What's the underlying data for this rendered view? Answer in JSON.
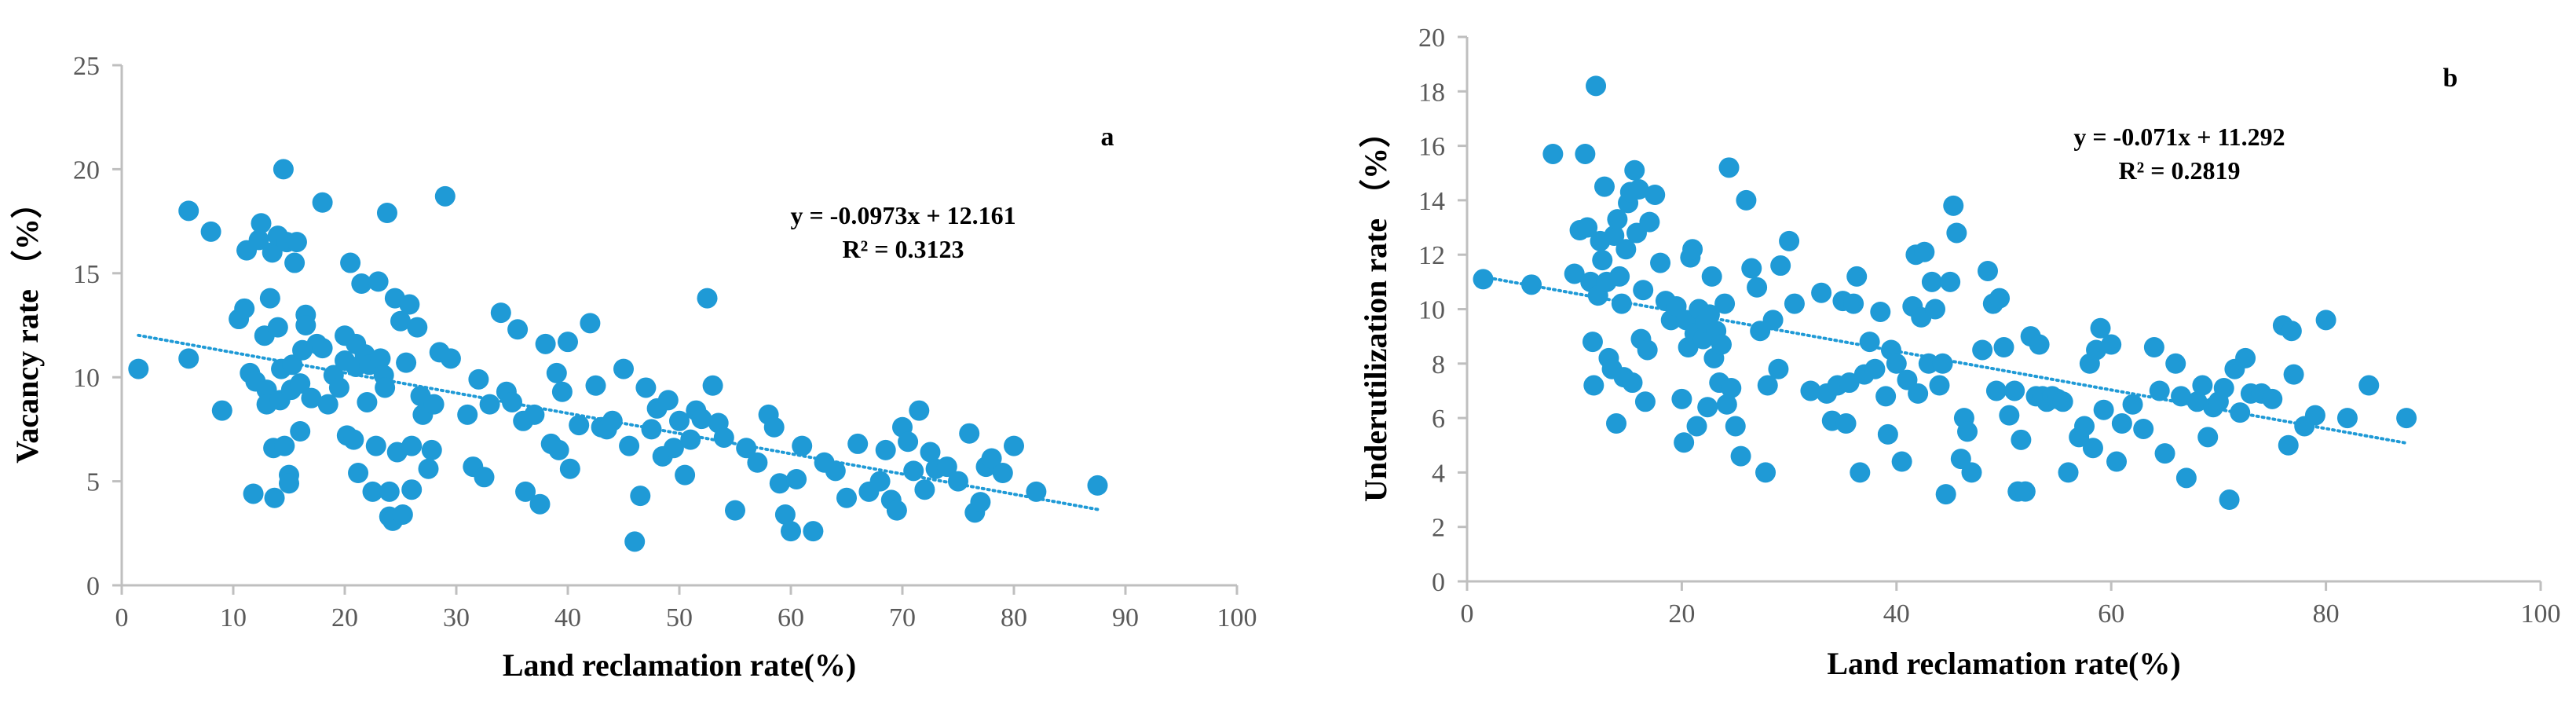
{
  "colors": {
    "point": "#1f9ad6",
    "trend": "#1f9ad6",
    "axis": "#bfbfbf",
    "text": "#000000"
  },
  "chart_data": [
    {
      "type": "scatter",
      "panel": "a",
      "xlabel": "Land reclamation rate(%)",
      "ylabel": "Vacancy rate （%）",
      "xlim": [
        0,
        100
      ],
      "ylim": [
        0,
        25
      ],
      "xticks": [
        0,
        10,
        20,
        30,
        40,
        50,
        60,
        70,
        80,
        90,
        100
      ],
      "yticks": [
        0,
        5,
        10,
        15,
        20,
        25
      ],
      "equation": "y = -0.0973x + 12.161",
      "r2": "R² = 0.3123",
      "trend": {
        "slope": -0.0973,
        "intercept": 12.161,
        "x_range": [
          1.5,
          87.5
        ]
      },
      "points": [
        [
          1.5,
          10.4
        ],
        [
          6,
          18
        ],
        [
          6,
          10.9
        ],
        [
          8,
          17
        ],
        [
          9,
          8.4
        ],
        [
          10.5,
          12.8
        ],
        [
          11,
          13.3
        ],
        [
          11.2,
          16.1
        ],
        [
          11.5,
          10.2
        ],
        [
          11.8,
          4.4
        ],
        [
          12,
          9.8
        ],
        [
          12.3,
          16.6
        ],
        [
          12.5,
          17.4
        ],
        [
          12.8,
          12
        ],
        [
          13,
          9.4
        ],
        [
          13,
          8.7
        ],
        [
          13.3,
          13.8
        ],
        [
          13.5,
          16
        ],
        [
          13.6,
          6.6
        ],
        [
          13.7,
          4.2
        ],
        [
          14,
          16.8
        ],
        [
          14,
          12.4
        ],
        [
          14.2,
          8.9
        ],
        [
          14.3,
          10.4
        ],
        [
          14.5,
          20
        ],
        [
          14.6,
          6.7
        ],
        [
          14.8,
          16.5
        ],
        [
          15,
          5.3
        ],
        [
          15,
          4.9
        ],
        [
          15.2,
          9.4
        ],
        [
          15.3,
          10.6
        ],
        [
          15.5,
          15.5
        ],
        [
          15.7,
          16.5
        ],
        [
          16,
          9.7
        ],
        [
          16,
          7.4
        ],
        [
          16.2,
          11.3
        ],
        [
          16.5,
          13
        ],
        [
          16.5,
          12.5
        ],
        [
          17,
          9
        ],
        [
          17.5,
          11.6
        ],
        [
          18,
          18.4
        ],
        [
          18,
          11.4
        ],
        [
          18.5,
          8.7
        ],
        [
          19,
          10.1
        ],
        [
          19.5,
          9.5
        ],
        [
          20,
          12
        ],
        [
          20,
          10.8
        ],
        [
          20.2,
          7.2
        ],
        [
          20.5,
          15.5
        ],
        [
          20.8,
          7
        ],
        [
          21,
          11.6
        ],
        [
          21,
          10.5
        ],
        [
          21.2,
          5.4
        ],
        [
          21.5,
          14.5
        ],
        [
          21.8,
          11.1
        ],
        [
          22,
          8.8
        ],
        [
          22.2,
          10.6
        ],
        [
          22.5,
          4.5
        ],
        [
          22.8,
          6.7
        ],
        [
          23,
          14.6
        ],
        [
          23.2,
          10.9
        ],
        [
          23.5,
          10.1
        ],
        [
          23.6,
          9.5
        ],
        [
          23.8,
          17.9
        ],
        [
          24,
          4.5
        ],
        [
          24,
          3.3
        ],
        [
          24.3,
          3.1
        ],
        [
          24.5,
          13.8
        ],
        [
          24.7,
          6.4
        ],
        [
          25,
          12.7
        ],
        [
          25.2,
          3.4
        ],
        [
          25.5,
          10.7
        ],
        [
          25.8,
          13.5
        ],
        [
          26,
          6.7
        ],
        [
          26,
          4.6
        ],
        [
          26.5,
          12.4
        ],
        [
          26.8,
          9.1
        ],
        [
          27,
          8.2
        ],
        [
          27.5,
          5.6
        ],
        [
          27.8,
          6.5
        ],
        [
          28,
          8.7
        ],
        [
          28.5,
          11.2
        ],
        [
          29,
          18.7
        ],
        [
          29.5,
          10.9
        ],
        [
          31,
          8.2
        ],
        [
          31.5,
          5.7
        ],
        [
          32,
          9.9
        ],
        [
          32.5,
          5.2
        ],
        [
          33,
          8.7
        ],
        [
          34,
          13.1
        ],
        [
          34.5,
          9.3
        ],
        [
          35,
          8.8
        ],
        [
          35.5,
          12.3
        ],
        [
          36,
          7.9
        ],
        [
          36.2,
          4.5
        ],
        [
          37,
          8.2
        ],
        [
          37.5,
          3.9
        ],
        [
          38,
          11.6
        ],
        [
          38.5,
          6.8
        ],
        [
          39,
          10.2
        ],
        [
          39.2,
          6.5
        ],
        [
          39.5,
          9.3
        ],
        [
          40,
          11.7
        ],
        [
          40.2,
          5.6
        ],
        [
          41,
          7.7
        ],
        [
          42,
          12.6
        ],
        [
          42.5,
          9.6
        ],
        [
          43,
          7.6
        ],
        [
          43.5,
          7.5
        ],
        [
          44,
          7.9
        ],
        [
          45,
          10.4
        ],
        [
          45.5,
          6.7
        ],
        [
          46,
          2.1
        ],
        [
          46.5,
          4.3
        ],
        [
          47,
          9.5
        ],
        [
          47.5,
          7.5
        ],
        [
          48,
          8.5
        ],
        [
          48.5,
          6.2
        ],
        [
          49,
          8.9
        ],
        [
          49.5,
          6.6
        ],
        [
          50,
          7.9
        ],
        [
          50.5,
          5.3
        ],
        [
          51,
          7
        ],
        [
          51.5,
          8.4
        ],
        [
          52,
          8
        ],
        [
          52.5,
          13.8
        ],
        [
          53,
          9.6
        ],
        [
          53.5,
          7.8
        ],
        [
          54,
          7.1
        ],
        [
          55,
          3.6
        ],
        [
          56,
          6.6
        ],
        [
          57,
          5.9
        ],
        [
          58,
          8.2
        ],
        [
          58.5,
          7.6
        ],
        [
          59,
          4.9
        ],
        [
          59.5,
          3.4
        ],
        [
          60,
          2.6
        ],
        [
          60.5,
          5.1
        ],
        [
          61,
          6.7
        ],
        [
          62,
          2.6
        ],
        [
          63,
          5.9
        ],
        [
          64,
          5.5
        ],
        [
          65,
          4.2
        ],
        [
          66,
          6.8
        ],
        [
          67,
          4.5
        ],
        [
          68,
          5
        ],
        [
          68.5,
          6.5
        ],
        [
          69,
          4.1
        ],
        [
          69.5,
          3.6
        ],
        [
          70,
          7.6
        ],
        [
          70.5,
          6.9
        ],
        [
          71,
          5.5
        ],
        [
          71.5,
          8.4
        ],
        [
          72,
          4.6
        ],
        [
          72.5,
          6.4
        ],
        [
          73,
          5.6
        ],
        [
          74,
          5.7
        ],
        [
          75,
          5
        ],
        [
          76,
          7.3
        ],
        [
          76.5,
          3.5
        ],
        [
          77,
          4
        ],
        [
          77.5,
          5.7
        ],
        [
          78,
          6.1
        ],
        [
          79,
          5.4
        ],
        [
          80,
          6.7
        ],
        [
          82,
          4.5
        ],
        [
          87.5,
          4.8
        ]
      ]
    },
    {
      "type": "scatter",
      "panel": "b",
      "xlabel": "Land reclamation rate(%)",
      "ylabel": "Underutilization rate （%）",
      "xlim": [
        0,
        100
      ],
      "ylim": [
        0,
        20
      ],
      "xticks": [
        0,
        20,
        40,
        60,
        80,
        100
      ],
      "yticks": [
        0,
        2,
        4,
        6,
        8,
        10,
        12,
        14,
        16,
        18,
        20
      ],
      "equation": "y = -0.071x + 11.292",
      "r2": "R² = 0.2819",
      "trend": {
        "slope": -0.071,
        "intercept": 11.292,
        "x_range": [
          1.5,
          87.5
        ]
      },
      "points": [
        [
          1.5,
          11.1
        ],
        [
          6,
          10.9
        ],
        [
          8,
          15.7
        ],
        [
          10,
          11.3
        ],
        [
          10.5,
          12.9
        ],
        [
          11,
          15.7
        ],
        [
          11.2,
          13
        ],
        [
          11.5,
          11
        ],
        [
          11.7,
          8.8
        ],
        [
          11.8,
          7.2
        ],
        [
          12,
          18.2
        ],
        [
          12.2,
          10.5
        ],
        [
          12.4,
          12.5
        ],
        [
          12.6,
          11.8
        ],
        [
          12.8,
          14.5
        ],
        [
          13,
          11
        ],
        [
          13.2,
          8.2
        ],
        [
          13.5,
          7.8
        ],
        [
          13.7,
          12.7
        ],
        [
          13.9,
          5.8
        ],
        [
          14,
          13.3
        ],
        [
          14.2,
          11.2
        ],
        [
          14.4,
          10.2
        ],
        [
          14.6,
          7.5
        ],
        [
          14.8,
          12.2
        ],
        [
          15,
          13.9
        ],
        [
          15.2,
          14.3
        ],
        [
          15.4,
          7.3
        ],
        [
          15.6,
          15.1
        ],
        [
          15.8,
          12.8
        ],
        [
          16,
          14.4
        ],
        [
          16.2,
          8.9
        ],
        [
          16.4,
          10.7
        ],
        [
          16.6,
          6.6
        ],
        [
          16.8,
          8.5
        ],
        [
          17,
          13.2
        ],
        [
          17.5,
          14.2
        ],
        [
          18,
          11.7
        ],
        [
          18.5,
          10.3
        ],
        [
          19,
          9.6
        ],
        [
          19.5,
          10.1
        ],
        [
          20,
          6.7
        ],
        [
          20.2,
          5.1
        ],
        [
          20.4,
          9.6
        ],
        [
          20.6,
          8.6
        ],
        [
          20.8,
          11.9
        ],
        [
          21,
          12.2
        ],
        [
          21.2,
          9.1
        ],
        [
          21.4,
          5.7
        ],
        [
          21.6,
          10
        ],
        [
          22,
          8.9
        ],
        [
          22.2,
          9.5
        ],
        [
          22.4,
          6.4
        ],
        [
          22.6,
          9.8
        ],
        [
          22.8,
          11.2
        ],
        [
          23,
          8.2
        ],
        [
          23.2,
          9.2
        ],
        [
          23.5,
          7.3
        ],
        [
          23.7,
          8.7
        ],
        [
          24,
          10.2
        ],
        [
          24.2,
          6.5
        ],
        [
          24.4,
          15.2
        ],
        [
          24.6,
          7.1
        ],
        [
          25,
          5.7
        ],
        [
          25.5,
          4.6
        ],
        [
          26,
          14
        ],
        [
          26.5,
          11.5
        ],
        [
          27,
          10.8
        ],
        [
          27.3,
          9.2
        ],
        [
          27.8,
          4
        ],
        [
          28,
          7.2
        ],
        [
          28.5,
          9.6
        ],
        [
          29,
          7.8
        ],
        [
          29.2,
          11.6
        ],
        [
          30,
          12.5
        ],
        [
          30.5,
          10.2
        ],
        [
          32,
          7
        ],
        [
          33,
          10.6
        ],
        [
          33.5,
          6.9
        ],
        [
          34,
          5.9
        ],
        [
          34.5,
          7.2
        ],
        [
          35,
          10.3
        ],
        [
          35.3,
          5.8
        ],
        [
          35.6,
          7.3
        ],
        [
          36,
          10.2
        ],
        [
          36.3,
          11.2
        ],
        [
          36.6,
          4
        ],
        [
          37,
          7.6
        ],
        [
          37.5,
          8.8
        ],
        [
          38,
          7.8
        ],
        [
          38.5,
          9.9
        ],
        [
          39,
          6.8
        ],
        [
          39.2,
          5.4
        ],
        [
          39.5,
          8.5
        ],
        [
          40,
          8
        ],
        [
          40.5,
          4.4
        ],
        [
          41,
          7.4
        ],
        [
          41.5,
          10.1
        ],
        [
          41.8,
          12
        ],
        [
          42,
          6.9
        ],
        [
          42.3,
          9.7
        ],
        [
          42.6,
          12.1
        ],
        [
          43,
          8
        ],
        [
          43.3,
          11
        ],
        [
          43.6,
          10
        ],
        [
          44,
          7.2
        ],
        [
          44.3,
          8
        ],
        [
          44.6,
          3.2
        ],
        [
          45,
          11
        ],
        [
          45.3,
          13.8
        ],
        [
          45.6,
          12.8
        ],
        [
          46,
          4.5
        ],
        [
          46.3,
          6
        ],
        [
          46.6,
          5.5
        ],
        [
          47,
          4
        ],
        [
          48,
          8.5
        ],
        [
          48.5,
          11.4
        ],
        [
          49,
          10.2
        ],
        [
          49.3,
          7
        ],
        [
          49.6,
          10.4
        ],
        [
          50,
          8.6
        ],
        [
          50.5,
          6.1
        ],
        [
          51,
          7
        ],
        [
          51.3,
          3.3
        ],
        [
          51.6,
          5.2
        ],
        [
          52,
          3.3
        ],
        [
          52.5,
          9
        ],
        [
          53,
          6.8
        ],
        [
          53.3,
          8.7
        ],
        [
          53.6,
          6.8
        ],
        [
          54,
          6.6
        ],
        [
          54.5,
          6.8
        ],
        [
          55,
          6.7
        ],
        [
          55.5,
          6.6
        ],
        [
          56,
          4
        ],
        [
          57,
          5.3
        ],
        [
          57.5,
          5.7
        ],
        [
          58,
          8
        ],
        [
          58.3,
          4.9
        ],
        [
          58.6,
          8.5
        ],
        [
          59,
          9.3
        ],
        [
          59.3,
          6.3
        ],
        [
          60,
          8.7
        ],
        [
          60.5,
          4.4
        ],
        [
          61,
          5.8
        ],
        [
          62,
          6.5
        ],
        [
          63,
          5.6
        ],
        [
          64,
          8.6
        ],
        [
          64.5,
          7
        ],
        [
          65,
          4.7
        ],
        [
          66,
          8
        ],
        [
          66.5,
          6.8
        ],
        [
          67,
          3.8
        ],
        [
          68,
          6.6
        ],
        [
          68.5,
          7.2
        ],
        [
          69,
          5.3
        ],
        [
          69.5,
          6.4
        ],
        [
          70,
          6.6
        ],
        [
          70.5,
          7.1
        ],
        [
          71,
          3
        ],
        [
          71.5,
          7.8
        ],
        [
          72,
          6.2
        ],
        [
          72.5,
          8.2
        ],
        [
          73,
          6.9
        ],
        [
          74,
          6.9
        ],
        [
          75,
          6.7
        ],
        [
          76,
          9.4
        ],
        [
          76.5,
          5
        ],
        [
          76.8,
          9.2
        ],
        [
          77,
          7.6
        ],
        [
          78,
          5.7
        ],
        [
          79,
          6.1
        ],
        [
          80,
          9.6
        ],
        [
          82,
          6
        ],
        [
          84,
          7.2
        ],
        [
          87.5,
          6
        ]
      ]
    }
  ]
}
